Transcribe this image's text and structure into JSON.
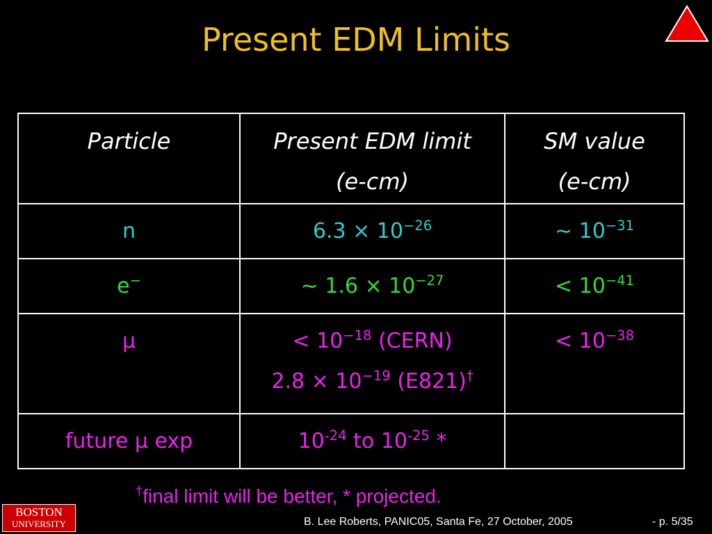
{
  "header": {
    "title": "Present EDM Limits"
  },
  "table": {
    "header_rows": [
      [
        [
          [
            {
              "text": "Particle"
            }
          ]
        ],
        [
          [
            {
              "text": "Present EDM limit"
            }
          ],
          [
            {
              "text": "(e-cm)"
            }
          ]
        ],
        [
          [
            {
              "text": "SM value"
            }
          ],
          [
            {
              "text": "(e-cm)"
            }
          ]
        ]
      ]
    ],
    "rows": [
      {
        "color": "#33cccc",
        "cells": [
          [
            [
              {
                "text": "n"
              }
            ]
          ],
          [
            [
              {
                "text": "6.3 × 10"
              },
              {
                "sup": "−26"
              }
            ]
          ],
          [
            [
              {
                "text": "∼ 10"
              },
              {
                "sup": "−31"
              }
            ]
          ]
        ]
      },
      {
        "color": "#33dd33",
        "cells": [
          [
            [
              {
                "text": "e"
              },
              {
                "sup": "−"
              }
            ]
          ],
          [
            [
              {
                "text": "∼ 1.6 × 10"
              },
              {
                "sup": "−27"
              }
            ]
          ],
          [
            [
              {
                "text": "< 10"
              },
              {
                "sup": "−41"
              }
            ]
          ]
        ]
      },
      {
        "color": "#ee22ee",
        "cells": [
          [
            [
              {
                "text": "μ"
              }
            ]
          ],
          [
            [
              {
                "text": "< 10"
              },
              {
                "sup": "−18"
              },
              {
                "text": " (CERN)"
              }
            ],
            [
              {
                "text": "2.8 × 10"
              },
              {
                "sup": "−19"
              },
              {
                "text": " (E821)"
              },
              {
                "sup": "†"
              }
            ]
          ],
          [
            [
              {
                "text": "< 10"
              },
              {
                "sup": "−38"
              }
            ]
          ]
        ]
      },
      {
        "color": "#ee22ee",
        "cells": [
          [
            [
              {
                "text": "future μ exp"
              }
            ]
          ],
          [
            [
              {
                "text": "10"
              },
              {
                "sup": "-24"
              },
              {
                "text": " to 10"
              },
              {
                "sup": "-25"
              },
              {
                "text": " *"
              }
            ]
          ],
          []
        ]
      }
    ]
  },
  "footnote": [
    {
      "sup": "†"
    },
    {
      "text": "final limit will be better,  * projected."
    }
  ],
  "footer": {
    "citation": "B. Lee Roberts, PANIC05, Santa Fe, 27 October, 2005",
    "page": "- p. 5/35"
  },
  "logo": {
    "line1": "BOSTON",
    "line2": "UNIVERSITY"
  }
}
